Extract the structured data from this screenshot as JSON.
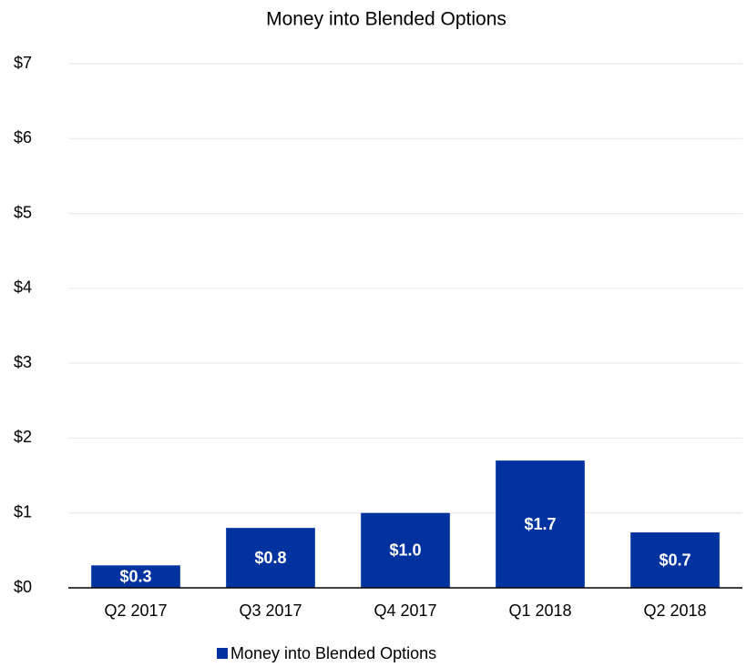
{
  "chart_data": {
    "type": "bar",
    "title": "Money into Blended Options",
    "categories": [
      "Q2 2017",
      "Q3 2017",
      "Q4 2017",
      "Q1 2018",
      "Q2 2018"
    ],
    "series": [
      {
        "name": "Money into Blended Options",
        "color": "#0033a0",
        "values": [
          0.3,
          0.8,
          1.0,
          1.7,
          0.74
        ],
        "value_labels": [
          "$0.3",
          "$0.8",
          "$1.0",
          "$1.7",
          "$0.7"
        ]
      }
    ],
    "ylim": [
      0,
      7
    ],
    "yticks": [
      {
        "value": 0,
        "label": "$0"
      },
      {
        "value": 1,
        "label": "$1"
      },
      {
        "value": 2,
        "label": "$2"
      },
      {
        "value": 3,
        "label": "$3"
      },
      {
        "value": 4,
        "label": "$4"
      },
      {
        "value": 5,
        "label": "$5"
      },
      {
        "value": 6,
        "label": "$6"
      },
      {
        "value": 7,
        "label": "$7"
      }
    ],
    "grid": true,
    "legend": "bottom"
  }
}
